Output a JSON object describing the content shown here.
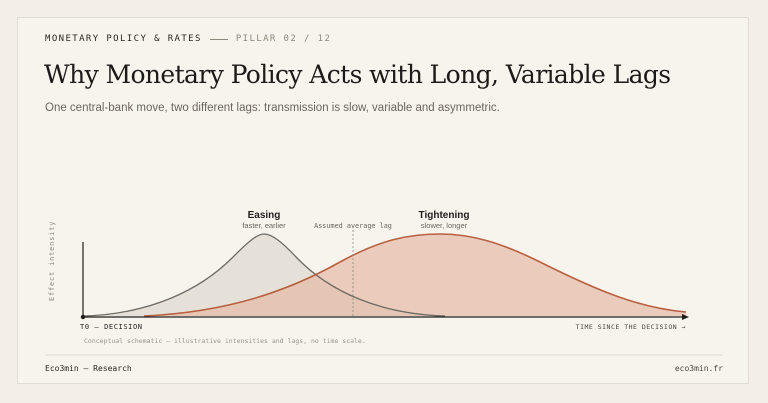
{
  "header": {
    "section": "MONETARY POLICY & RATES",
    "pillar": "PILLAR 02 / 12",
    "title": "Why Monetary Policy Acts with Long, Variable Lags",
    "subtitle": "One central-bank move, two different lags: transmission is slow, variable and asymmetric."
  },
  "diagram": {
    "y_axis_label": "Effect intensity",
    "x_origin_label": "T0 — DECISION",
    "x_axis_label": "TIME SINCE THE DECISION →",
    "average_lag_label": "Assumed average lag",
    "note": "Conceptual schematic — illustrative intensities and lags, no time scale.",
    "curves": [
      {
        "name": "Easing",
        "caption": "faster, earlier",
        "fill": "#e4dfd6",
        "stroke": "#6e6a64"
      },
      {
        "name": "Tightening",
        "caption": "slower, longer",
        "fill": "#e9c8b8",
        "stroke": "#b8603f"
      }
    ]
  },
  "footer": {
    "brand": "Eco3min — Research",
    "site": "eco3min.fr"
  }
}
